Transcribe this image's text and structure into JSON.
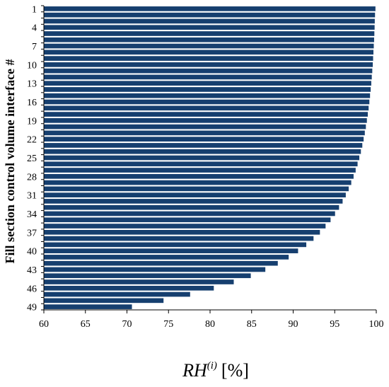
{
  "chart_data": {
    "type": "bar",
    "orientation": "horizontal",
    "bar_color": "#163f6f",
    "ylabel": "Fill section control volume interface #",
    "xlabel": {
      "main": "RH",
      "superscript": "(i)",
      "unit": "[%]"
    },
    "xlim": [
      60,
      100
    ],
    "x_ticks": [
      "60",
      "65",
      "70",
      "75",
      "80",
      "85",
      "90",
      "95",
      "100"
    ],
    "y_tick_labels": [
      "1",
      "4",
      "7",
      "10",
      "13",
      "16",
      "19",
      "22",
      "25",
      "28",
      "31",
      "34",
      "37",
      "40",
      "43",
      "46",
      "49"
    ],
    "categories": [
      1,
      2,
      3,
      4,
      5,
      6,
      7,
      8,
      9,
      10,
      11,
      12,
      13,
      14,
      15,
      16,
      17,
      18,
      19,
      20,
      21,
      22,
      23,
      24,
      25,
      26,
      27,
      28,
      29,
      30,
      31,
      32,
      33,
      34,
      35,
      36,
      37,
      38,
      39,
      40,
      41,
      42,
      43,
      44,
      45,
      46,
      47,
      48,
      49
    ],
    "values": [
      99.9,
      99.85,
      99.82,
      99.8,
      99.77,
      99.74,
      99.7,
      99.66,
      99.62,
      99.58,
      99.52,
      99.46,
      99.4,
      99.33,
      99.25,
      99.17,
      99.08,
      98.98,
      98.87,
      98.75,
      98.62,
      98.48,
      98.32,
      98.15,
      97.96,
      97.75,
      97.52,
      97.27,
      96.99,
      96.68,
      96.33,
      95.95,
      95.52,
      95.04,
      94.5,
      93.9,
      93.22,
      92.45,
      91.58,
      90.59,
      89.46,
      88.15,
      86.65,
      84.9,
      82.85,
      80.45,
      77.6,
      74.4,
      70.6
    ]
  }
}
